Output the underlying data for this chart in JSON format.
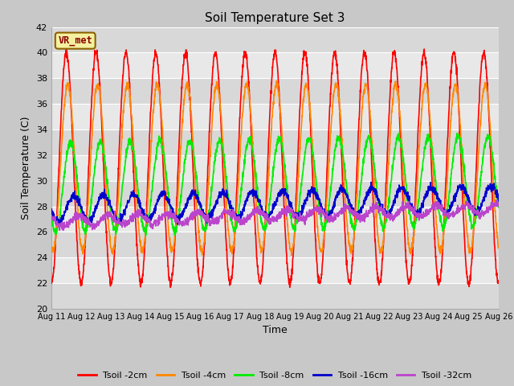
{
  "title": "Soil Temperature Set 3",
  "xlabel": "Time",
  "ylabel": "Soil Temperature (C)",
  "ylim": [
    20,
    42
  ],
  "n_days": 15,
  "label_annotation": "VR_met",
  "series_names": [
    "Tsoil -2cm",
    "Tsoil -4cm",
    "Tsoil -8cm",
    "Tsoil -16cm",
    "Tsoil -32cm"
  ],
  "series_colors": [
    "#ff0000",
    "#ff8800",
    "#00ee00",
    "#0000cc",
    "#bb44cc"
  ],
  "tick_labels": [
    "Aug 11",
    "Aug 12",
    "Aug 13",
    "Aug 14",
    "Aug 15",
    "Aug 16",
    "Aug 17",
    "Aug 18",
    "Aug 19",
    "Aug 20",
    "Aug 21",
    "Aug 22",
    "Aug 23",
    "Aug 24",
    "Aug 25",
    "Aug 26"
  ],
  "yticks": [
    20,
    22,
    24,
    26,
    28,
    30,
    32,
    34,
    36,
    38,
    40,
    42
  ],
  "band_colors": [
    "#d8d8d8",
    "#e8e8e8"
  ],
  "fig_bg": "#c8c8c8",
  "params_2cm": {
    "mean": 31.0,
    "amp": 9.0,
    "phase": 0.0,
    "trend": 0.0
  },
  "params_4cm": {
    "mean": 31.0,
    "amp": 6.5,
    "phase": 0.05,
    "trend": 0.0
  },
  "params_8cm": {
    "mean": 29.5,
    "amp": 3.5,
    "phase": 0.14,
    "trend": 0.5
  },
  "params_16cm": {
    "mean": 27.8,
    "amp": 1.0,
    "phase": 0.25,
    "trend": 0.8
  },
  "params_32cm": {
    "mean": 26.8,
    "amp": 0.4,
    "phase": 0.4,
    "trend": 1.0
  }
}
